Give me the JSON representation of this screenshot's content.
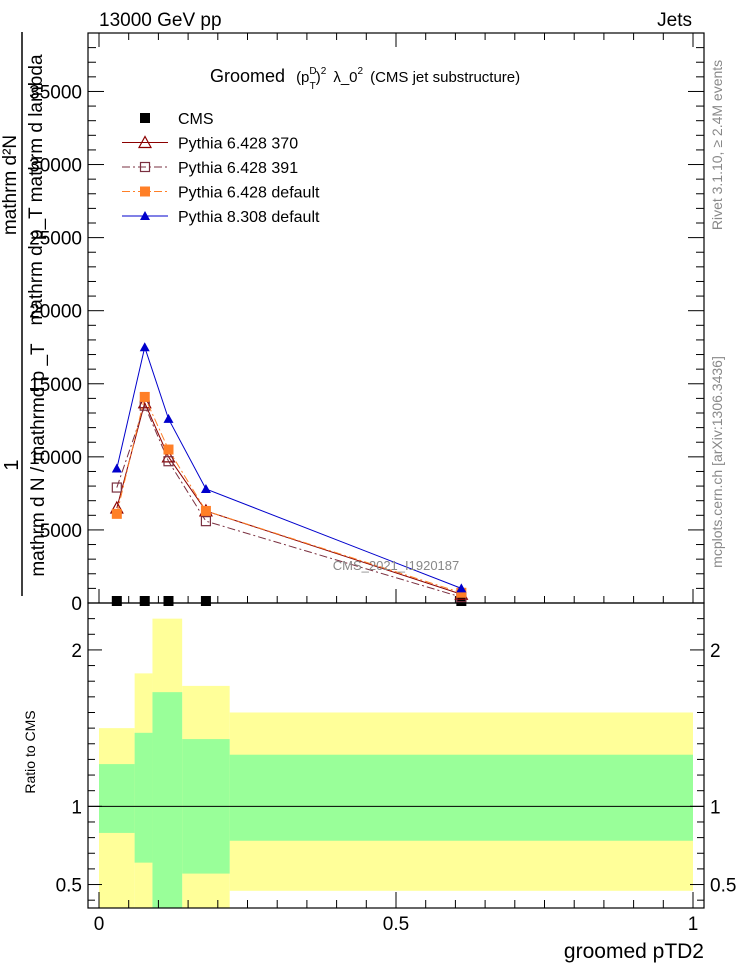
{
  "header": {
    "left_label": "13000 GeV pp",
    "right_label": "Jets"
  },
  "side_labels": {
    "rivet": "Rivet 3.1.10, ≥ 2.4M events",
    "mcplots": "mcplots.cern.ch [arXiv:1306.3436]"
  },
  "chart_data": [
    {
      "type": "line",
      "title": "Groomed (p_T^D)^2 λ_0^2 (CMS jet substructure)",
      "title_parts": {
        "prefix": "Groomed",
        "p": "(p",
        "sup_D": "D",
        "sub_T": "T",
        "close": ")",
        "sup_2": "2",
        "lambda": "λ_0",
        "sup_2b": "2",
        "suffix": "(CMS jet substructure)"
      },
      "ylabel_parts": {
        "num": "mathrm d²N",
        "den": "mathrm d p_T mathrm d lambda",
        "front1": "1",
        "front2": "mathrm d N / mathrmd p _T"
      },
      "watermark": "CMS_2021_I1920187",
      "xlim": [
        0,
        1
      ],
      "ylim": [
        0,
        39000
      ],
      "y_ticks": [
        0,
        5000,
        10000,
        15000,
        20000,
        25000,
        30000,
        35000
      ],
      "y_tick_labels": [
        "0",
        "5000",
        "10000",
        "15000",
        "20000",
        "25000",
        "30000",
        "35000"
      ],
      "legend_position": "top-left",
      "x": [
        0.03,
        0.077,
        0.117,
        0.18,
        0.61
      ],
      "series": [
        {
          "name": "CMS",
          "color": "#000000",
          "marker": "square-filled",
          "line": "none",
          "values": [
            50,
            50,
            50,
            50,
            50
          ]
        },
        {
          "name": "Pythia 6.428 370",
          "color": "#8b0000",
          "marker": "triangle-open",
          "line": "solid",
          "values": [
            6500,
            13700,
            10000,
            6300,
            600
          ]
        },
        {
          "name": "Pythia 6.428 391",
          "color": "#7a3040",
          "marker": "square-open",
          "line": "dashdot",
          "values": [
            7900,
            13500,
            9700,
            5600,
            400
          ]
        },
        {
          "name": "Pythia 6.428 default",
          "color": "#ff7f27",
          "marker": "square-filled",
          "line": "dashdot",
          "values": [
            6100,
            14100,
            10500,
            6300,
            700
          ]
        },
        {
          "name": "Pythia 8.308 default",
          "color": "#0000cc",
          "marker": "triangle-filled",
          "line": "solid",
          "values": [
            9200,
            17500,
            12600,
            7800,
            1000
          ]
        }
      ]
    },
    {
      "type": "area",
      "ylabel": "Ratio to CMS",
      "xlabel": "groomed pTD2",
      "xlim": [
        0,
        1
      ],
      "ylim": [
        0.35,
        2.3
      ],
      "y_ticks": [
        0.5,
        1,
        2
      ],
      "y_tick_labels": [
        "0.5",
        "1",
        "2"
      ],
      "x_ticks": [
        0,
        0.5,
        1
      ],
      "x_tick_labels": [
        "0",
        "0.5",
        "1"
      ],
      "reference_line": 1,
      "bins": [
        {
          "x0": 0.0,
          "x1": 0.06,
          "green": [
            0.83,
            1.27
          ],
          "yellow": [
            0.35,
            1.5
          ]
        },
        {
          "x0": 0.06,
          "x1": 0.09,
          "green": [
            0.64,
            1.47
          ],
          "yellow": [
            0.35,
            1.85
          ]
        },
        {
          "x0": 0.09,
          "x1": 0.14,
          "green": [
            0.35,
            1.73
          ],
          "yellow": [
            0.35,
            2.2
          ]
        },
        {
          "x0": 0.14,
          "x1": 0.22,
          "green": [
            0.57,
            1.43
          ],
          "yellow": [
            0.35,
            1.77
          ]
        },
        {
          "x0": 0.22,
          "x1": 1.0,
          "green": [
            0.78,
            1.33
          ],
          "yellow": [
            0.46,
            1.6
          ]
        }
      ],
      "colors": {
        "green": "#99ff99",
        "yellow": "#ffff99"
      }
    }
  ]
}
